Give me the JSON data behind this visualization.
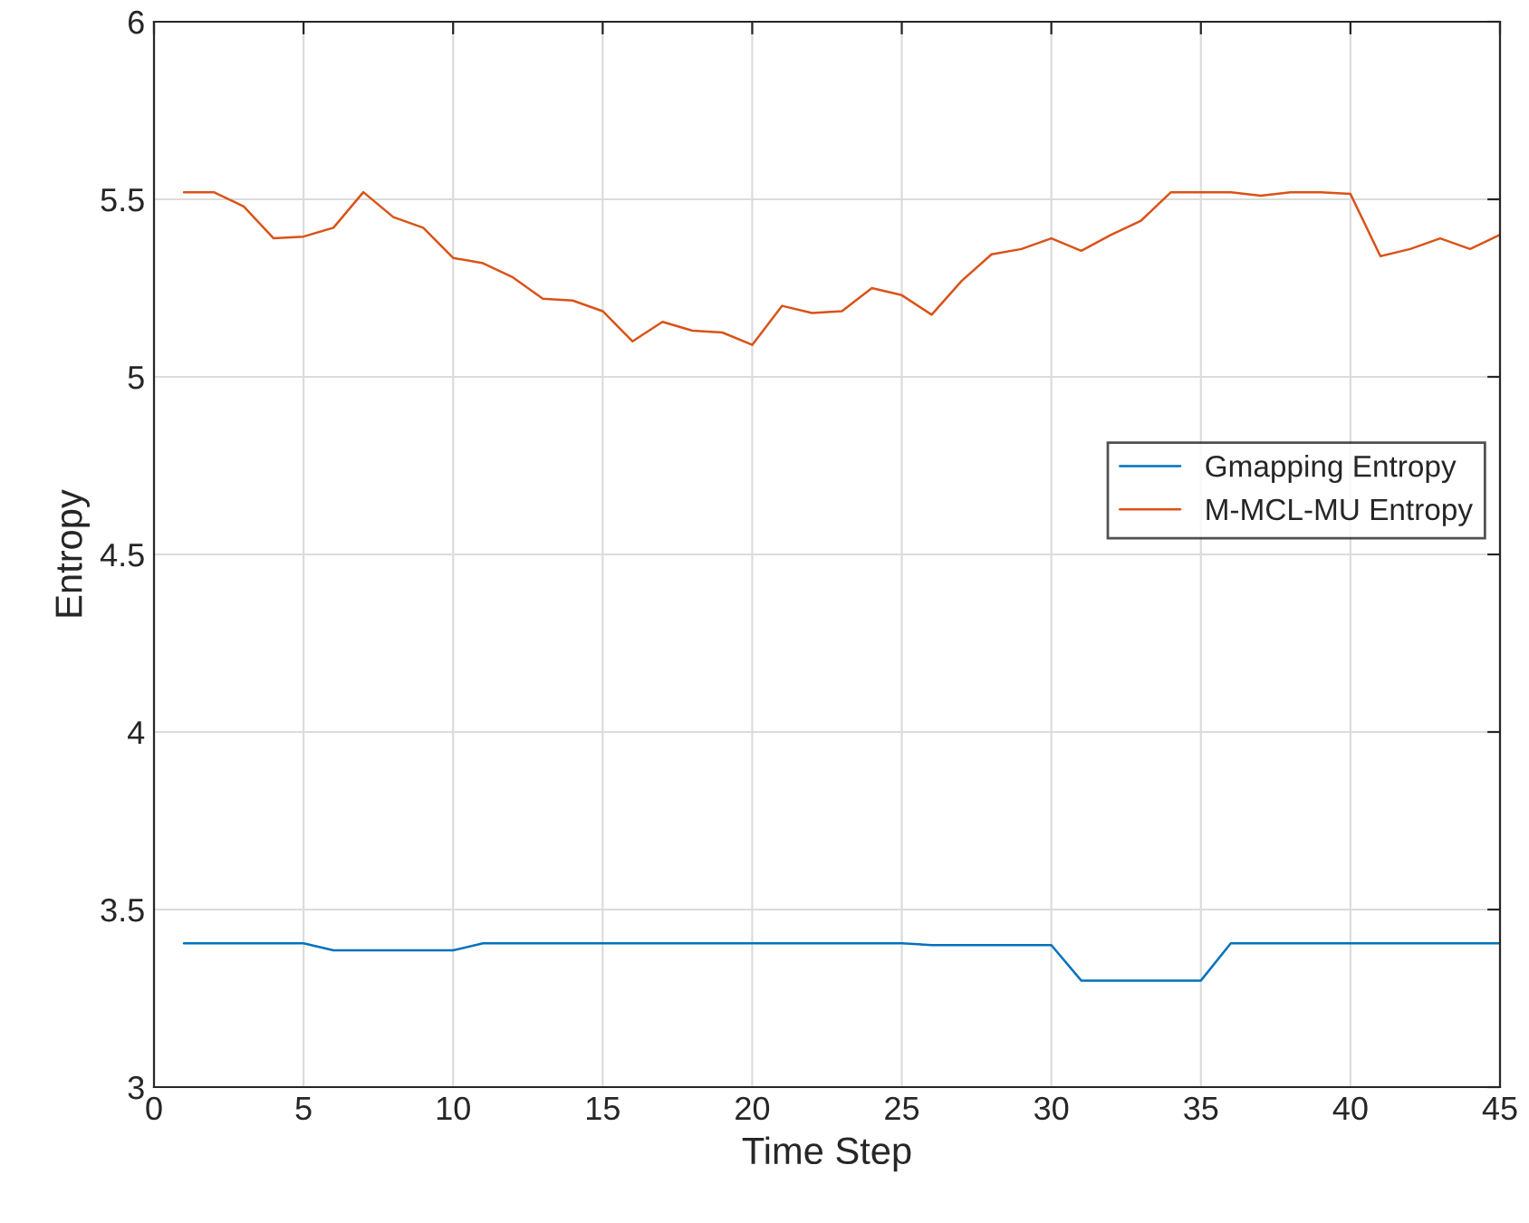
{
  "chart_data": {
    "type": "line",
    "xlabel": "Time Step",
    "ylabel": "Entropy",
    "x": [
      1,
      2,
      3,
      4,
      5,
      6,
      7,
      8,
      9,
      10,
      11,
      12,
      13,
      14,
      15,
      16,
      17,
      18,
      19,
      20,
      21,
      22,
      23,
      24,
      25,
      26,
      27,
      28,
      29,
      30,
      31,
      32,
      33,
      34,
      35,
      36,
      37,
      38,
      39,
      40,
      41,
      42,
      43,
      44,
      45
    ],
    "series": [
      {
        "name": "Gmapping Entropy",
        "color": "#0072bd",
        "values": [
          3.405,
          3.405,
          3.405,
          3.405,
          3.405,
          3.385,
          3.385,
          3.385,
          3.385,
          3.385,
          3.405,
          3.405,
          3.405,
          3.405,
          3.405,
          3.405,
          3.405,
          3.405,
          3.405,
          3.405,
          3.405,
          3.405,
          3.405,
          3.405,
          3.405,
          3.4,
          3.4,
          3.4,
          3.4,
          3.4,
          3.3,
          3.3,
          3.3,
          3.3,
          3.3,
          3.405,
          3.405,
          3.405,
          3.405,
          3.405,
          3.405,
          3.405,
          3.405,
          3.405,
          3.405
        ]
      },
      {
        "name": "M-MCL-MU Entropy",
        "color": "#d95319",
        "values": [
          5.52,
          5.52,
          5.48,
          5.39,
          5.395,
          5.42,
          5.52,
          5.45,
          5.42,
          5.335,
          5.32,
          5.28,
          5.22,
          5.215,
          5.185,
          5.1,
          5.155,
          5.13,
          5.125,
          5.09,
          5.2,
          5.18,
          5.185,
          5.25,
          5.23,
          5.175,
          5.27,
          5.345,
          5.36,
          5.39,
          5.355,
          5.4,
          5.44,
          5.52,
          5.52,
          5.52,
          5.51,
          5.52,
          5.52,
          5.515,
          5.34,
          5.36,
          5.39,
          5.36,
          5.4
        ]
      }
    ],
    "xlim": [
      0,
      45
    ],
    "xticks": [
      0,
      5,
      10,
      15,
      20,
      25,
      30,
      35,
      40,
      45
    ],
    "ylim": [
      3,
      6
    ],
    "yticks": [
      3,
      3.5,
      4,
      4.5,
      5,
      5.5,
      6
    ],
    "grid": true,
    "legend": "right",
    "marker": "none",
    "line_style": "solid"
  }
}
